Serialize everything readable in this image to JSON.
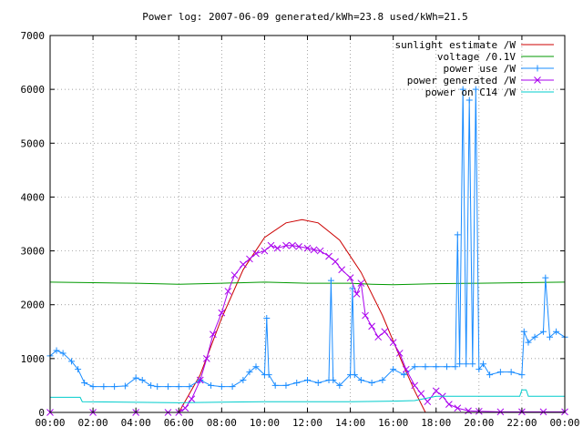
{
  "chart_data": {
    "type": "line",
    "title": "Power log: 2007-06-09 generated/kWh=23.8 used/kWh=21.5",
    "xlabel": "",
    "ylabel": "",
    "x_unit": "hours",
    "xlim": [
      0,
      24
    ],
    "ylim": [
      0,
      7000
    ],
    "x_ticks": [
      0,
      2,
      4,
      6,
      8,
      10,
      12,
      14,
      16,
      18,
      20,
      22,
      24
    ],
    "x_tick_labels": [
      "00:00",
      "02:00",
      "04:00",
      "06:00",
      "08:00",
      "10:00",
      "12:00",
      "14:00",
      "16:00",
      "18:00",
      "20:00",
      "22:00",
      "00:00"
    ],
    "y_ticks": [
      0,
      1000,
      2000,
      3000,
      4000,
      5000,
      6000,
      7000
    ],
    "y_tick_labels": [
      "0",
      "1000",
      "2000",
      "3000",
      "4000",
      "5000",
      "6000",
      "7000"
    ],
    "grid": true,
    "legend_position": "top-right",
    "series": [
      {
        "name": "sunlight estimate /W",
        "color": "#cc0000",
        "marker": "none",
        "x": [
          6.0,
          7.0,
          8.0,
          9.0,
          10.0,
          11.0,
          11.75,
          12.5,
          13.5,
          14.5,
          15.5,
          16.5,
          17.0,
          17.5
        ],
        "y": [
          0,
          700,
          1750,
          2650,
          3250,
          3520,
          3580,
          3520,
          3200,
          2600,
          1800,
          850,
          400,
          0
        ]
      },
      {
        "name": "voltage /0.1V",
        "color": "#009900",
        "marker": "none",
        "x": [
          0,
          2,
          4,
          6,
          8,
          10,
          12,
          14,
          15,
          16,
          18,
          20,
          22,
          24
        ],
        "y": [
          2420,
          2410,
          2400,
          2380,
          2400,
          2420,
          2400,
          2400,
          2380,
          2370,
          2390,
          2400,
          2410,
          2420
        ]
      },
      {
        "name": "power use /W",
        "color": "#1a8cff",
        "marker": "plus",
        "x": [
          0.0,
          0.3,
          0.6,
          1.0,
          1.3,
          1.6,
          2.0,
          2.5,
          3.0,
          3.5,
          4.0,
          4.3,
          4.7,
          5.0,
          5.5,
          6.0,
          6.5,
          7.0,
          7.5,
          8.0,
          8.5,
          9.0,
          9.3,
          9.6,
          10.0,
          10.1,
          10.2,
          10.5,
          11.0,
          11.5,
          12.0,
          12.5,
          13.0,
          13.1,
          13.2,
          13.5,
          14.0,
          14.1,
          14.2,
          14.5,
          15.0,
          15.5,
          16.0,
          16.5,
          17.0,
          17.5,
          18.0,
          18.5,
          18.9,
          19.0,
          19.1,
          19.25,
          19.4,
          19.55,
          19.7,
          19.85,
          20.0,
          20.2,
          20.5,
          21.0,
          21.5,
          22.0,
          22.1,
          22.3,
          22.6,
          23.0,
          23.1,
          23.3,
          23.6,
          24.0
        ],
        "y": [
          1050,
          1150,
          1100,
          950,
          800,
          550,
          480,
          480,
          480,
          490,
          640,
          600,
          500,
          480,
          480,
          480,
          480,
          600,
          500,
          480,
          480,
          600,
          750,
          850,
          700,
          1750,
          700,
          500,
          500,
          550,
          600,
          550,
          600,
          2450,
          600,
          500,
          700,
          2300,
          700,
          600,
          550,
          600,
          800,
          700,
          850,
          850,
          850,
          850,
          850,
          3300,
          900,
          6000,
          900,
          5800,
          900,
          6000,
          800,
          900,
          700,
          750,
          750,
          700,
          1500,
          1300,
          1400,
          1500,
          2500,
          1400,
          1500,
          1400
        ]
      },
      {
        "name": "power generated /W",
        "color": "#aa00ee",
        "marker": "cross",
        "x": [
          0.0,
          2.0,
          4.0,
          5.5,
          6.0,
          6.3,
          6.6,
          7.0,
          7.3,
          7.6,
          8.0,
          8.3,
          8.6,
          9.0,
          9.3,
          9.6,
          10.0,
          10.3,
          10.6,
          11.0,
          11.3,
          11.6,
          12.0,
          12.3,
          12.6,
          13.0,
          13.3,
          13.6,
          14.0,
          14.3,
          14.5,
          14.7,
          15.0,
          15.3,
          15.6,
          16.0,
          16.3,
          16.6,
          17.0,
          17.3,
          17.6,
          18.0,
          18.3,
          18.6,
          19.0,
          19.5,
          20.0,
          21.0,
          22.0,
          23.0,
          24.0
        ],
        "y": [
          0,
          0,
          0,
          0,
          0,
          80,
          250,
          600,
          1000,
          1450,
          1850,
          2250,
          2550,
          2750,
          2850,
          2950,
          3000,
          3100,
          3050,
          3100,
          3100,
          3080,
          3050,
          3020,
          3000,
          2900,
          2800,
          2650,
          2500,
          2200,
          2400,
          1800,
          1600,
          1400,
          1500,
          1300,
          1100,
          800,
          500,
          350,
          200,
          400,
          300,
          150,
          80,
          30,
          20,
          10,
          10,
          10,
          10
        ]
      },
      {
        "name": "power on C14 /W",
        "color": "#00cccc",
        "marker": "none",
        "x": [
          0.0,
          1.4,
          1.5,
          6.0,
          8.0,
          10.0,
          12.0,
          14.0,
          16.0,
          17.0,
          18.0,
          20.0,
          21.9,
          22.0,
          22.2,
          22.3,
          24.0
        ],
        "y": [
          280,
          280,
          200,
          180,
          190,
          200,
          200,
          200,
          210,
          220,
          300,
          300,
          300,
          420,
          420,
          300,
          300
        ]
      }
    ]
  }
}
